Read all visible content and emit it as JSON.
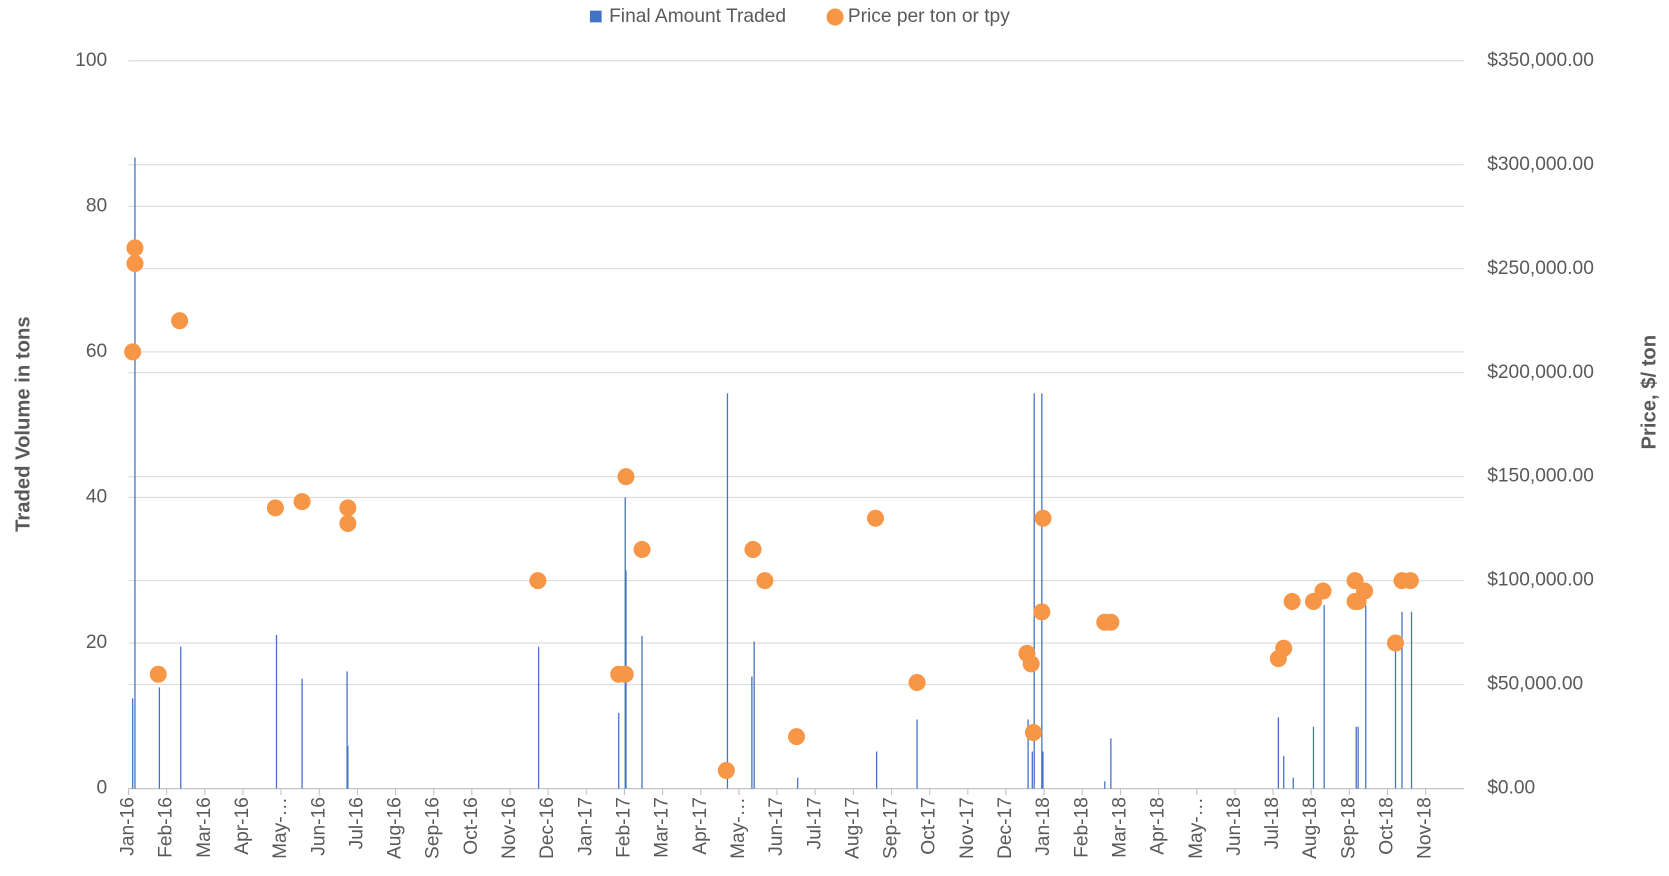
{
  "chart_data": {
    "type": "combo",
    "legend": "top",
    "grid": true,
    "ylabel": "Traded Volume in tons",
    "y2label": "Price, $/ ton",
    "xlim": [
      0,
      35
    ],
    "xticks": [
      {
        "value": 0,
        "label": "Jan-16"
      },
      {
        "value": 1,
        "label": "Feb-16"
      },
      {
        "value": 2,
        "label": "Mar-16"
      },
      {
        "value": 3,
        "label": "Apr-16"
      },
      {
        "value": 4,
        "label": "May-…"
      },
      {
        "value": 5,
        "label": "Jun-16"
      },
      {
        "value": 6,
        "label": "Jul-16"
      },
      {
        "value": 7,
        "label": "Aug-16"
      },
      {
        "value": 8,
        "label": "Sep-16"
      },
      {
        "value": 9,
        "label": "Oct-16"
      },
      {
        "value": 10,
        "label": "Nov-16"
      },
      {
        "value": 11,
        "label": "Dec-16"
      },
      {
        "value": 12,
        "label": "Jan-17"
      },
      {
        "value": 13,
        "label": "Feb-17"
      },
      {
        "value": 14,
        "label": "Mar-17"
      },
      {
        "value": 15,
        "label": "Apr-17"
      },
      {
        "value": 16,
        "label": "May-…"
      },
      {
        "value": 17,
        "label": "Jun-17"
      },
      {
        "value": 18,
        "label": "Jul-17"
      },
      {
        "value": 19,
        "label": "Aug-17"
      },
      {
        "value": 20,
        "label": "Sep-17"
      },
      {
        "value": 21,
        "label": "Oct-17"
      },
      {
        "value": 22,
        "label": "Nov-17"
      },
      {
        "value": 23,
        "label": "Dec-17"
      },
      {
        "value": 24,
        "label": "Jan-18"
      },
      {
        "value": 25,
        "label": "Feb-18"
      },
      {
        "value": 26,
        "label": "Mar-18"
      },
      {
        "value": 27,
        "label": "Apr-18"
      },
      {
        "value": 28,
        "label": "May-…"
      },
      {
        "value": 29,
        "label": "Jun-18"
      },
      {
        "value": 30,
        "label": "Jul-18"
      },
      {
        "value": 31,
        "label": "Aug-18"
      },
      {
        "value": 32,
        "label": "Sep-18"
      },
      {
        "value": 33,
        "label": "Oct-18"
      },
      {
        "value": 34,
        "label": "Nov-18"
      }
    ],
    "ylim": [
      0,
      100
    ],
    "yticks": [
      0,
      20,
      40,
      60,
      80,
      100
    ],
    "y2lim": [
      0,
      350000
    ],
    "y2ticks": [
      {
        "value": 0,
        "label": "$0.00"
      },
      {
        "value": 50000,
        "label": "$50,000.00"
      },
      {
        "value": 100000,
        "label": "$100,000.00"
      },
      {
        "value": 150000,
        "label": "$150,000.00"
      },
      {
        "value": 200000,
        "label": "$200,000.00"
      },
      {
        "value": 250000,
        "label": "$250,000.00"
      },
      {
        "value": 300000,
        "label": "$300,000.00"
      },
      {
        "value": 350000,
        "label": "$350,000.00"
      }
    ],
    "series": [
      {
        "name": "Final Amount Traded",
        "color": "#4472c4",
        "type": "bar",
        "x": [
          0.11,
          0.17,
          0.81,
          1.37,
          3.88,
          4.55,
          5.73,
          5.75,
          10.75,
          12.85,
          13.02,
          13.04,
          13.46,
          15.7,
          16.34,
          16.4,
          17.54,
          19.61,
          20.67,
          23.58,
          23.69,
          23.74,
          23.94,
          23.97,
          25.59,
          25.75,
          30.14,
          30.28,
          30.53,
          31.06,
          31.34,
          32.18,
          32.23,
          32.43,
          33.21,
          33.38,
          33.63
        ],
        "values": [
          12.4,
          86.7,
          13.9,
          19.5,
          21.1,
          15.1,
          16.1,
          5.9,
          19.5,
          10.4,
          40,
          30,
          21,
          54.3,
          15.4,
          20.2,
          1.5,
          5.1,
          9.5,
          9.5,
          5.1,
          54.3,
          54.3,
          5.1,
          1.0,
          6.9,
          9.8,
          4.5,
          1.5,
          8.5,
          25.2,
          8.5,
          8.5,
          25.2,
          19.3,
          24.3,
          24.3
        ]
      },
      {
        "name": "Price per ton or tpy",
        "color": "#f79646",
        "type": "scatter",
        "axis": "y2",
        "x": [
          0.17,
          0.17,
          0.11,
          0.78,
          1.34,
          3.85,
          4.55,
          5.75,
          5.75,
          10.73,
          12.85,
          13.02,
          13.04,
          13.46,
          15.67,
          16.37,
          16.68,
          17.51,
          19.58,
          20.67,
          23.55,
          23.66,
          23.72,
          23.94,
          23.97,
          25.59,
          25.75,
          30.14,
          30.28,
          30.5,
          31.06,
          31.31,
          32.15,
          32.15,
          32.23,
          32.4,
          33.21,
          33.38,
          33.6
        ],
        "values": [
          260000,
          252500,
          210000,
          55000,
          225000,
          135000,
          138000,
          135000,
          127500,
          100000,
          55000,
          55000,
          150000,
          115000,
          8700,
          115000,
          100000,
          25000,
          130000,
          51000,
          65000,
          60000,
          27000,
          85000,
          130000,
          80000,
          80000,
          62500,
          67500,
          90000,
          90000,
          95000,
          100000,
          90000,
          90000,
          95000,
          70000,
          100000,
          100000
        ]
      }
    ]
  }
}
